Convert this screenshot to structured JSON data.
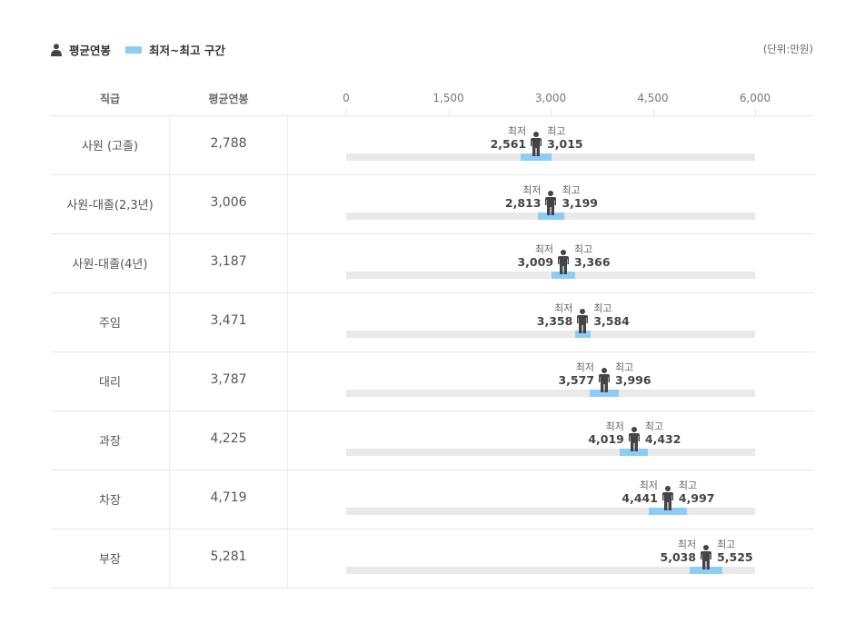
{
  "legend": {
    "avg_label": "평균연봉",
    "range_label": "최저~최고 구간",
    "unit": "(단위:만원)"
  },
  "headers": {
    "col1": "직급",
    "col2": "평균연봉"
  },
  "labels": {
    "min": "최저",
    "max": "최고"
  },
  "colors": {
    "range": "#8dcdf5",
    "track": "#e9e9e9",
    "person": "#444444"
  },
  "icons": {
    "legend": "person-icon",
    "marker": "person-icon"
  },
  "chart_data": {
    "type": "range-bar",
    "x_ticks": [
      "0",
      "1,500",
      "3,000",
      "4,500",
      "6,000"
    ],
    "xlim": [
      0,
      6000
    ],
    "rows": [
      {
        "grade": "사원 (고졸)",
        "avg": 2788,
        "min": 2561,
        "max": 3015,
        "avg_label": "2,788",
        "min_label": "2,561",
        "max_label": "3,015"
      },
      {
        "grade": "사원-대졸(2,3년)",
        "avg": 3006,
        "min": 2813,
        "max": 3199,
        "avg_label": "3,006",
        "min_label": "2,813",
        "max_label": "3,199"
      },
      {
        "grade": "사원-대졸(4년)",
        "avg": 3187,
        "min": 3009,
        "max": 3366,
        "avg_label": "3,187",
        "min_label": "3,009",
        "max_label": "3,366"
      },
      {
        "grade": "주임",
        "avg": 3471,
        "min": 3358,
        "max": 3584,
        "avg_label": "3,471",
        "min_label": "3,358",
        "max_label": "3,584"
      },
      {
        "grade": "대리",
        "avg": 3787,
        "min": 3577,
        "max": 3996,
        "avg_label": "3,787",
        "min_label": "3,577",
        "max_label": "3,996"
      },
      {
        "grade": "과장",
        "avg": 4225,
        "min": 4019,
        "max": 4432,
        "avg_label": "4,225",
        "min_label": "4,019",
        "max_label": "4,432"
      },
      {
        "grade": "차장",
        "avg": 4719,
        "min": 4441,
        "max": 4997,
        "avg_label": "4,719",
        "min_label": "4,441",
        "max_label": "4,997"
      },
      {
        "grade": "부장",
        "avg": 5281,
        "min": 5038,
        "max": 5525,
        "avg_label": "5,281",
        "min_label": "5,038",
        "max_label": "5,525"
      }
    ]
  }
}
